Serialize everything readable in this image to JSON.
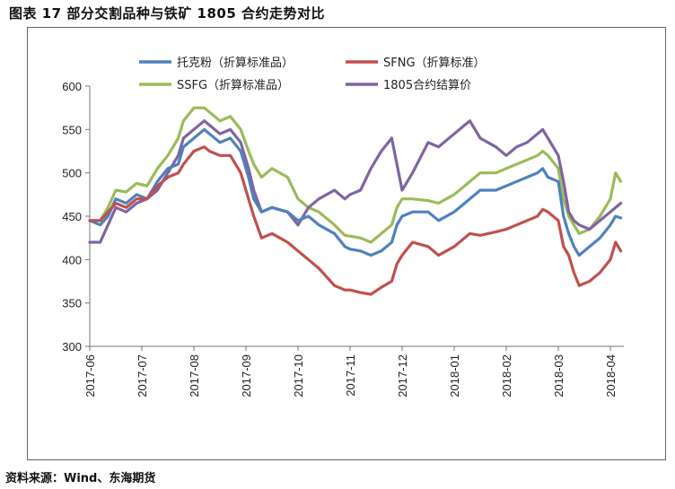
{
  "page": {
    "title": "图表 17 部分交割品种与铁矿 1805 合约走势对比",
    "source": "资料来源：Wind、东海期货"
  },
  "chart_data": {
    "type": "line",
    "title": "图表 17 部分交割品种与铁矿 1805 合约走势对比",
    "xlabel": "",
    "ylabel": "",
    "ylim": [
      300,
      600
    ],
    "yticks": [
      300,
      350,
      400,
      450,
      500,
      550,
      600
    ],
    "xlim": [
      0,
      10.2
    ],
    "x_categories": [
      "2017-06",
      "2017-07",
      "2017-08",
      "2017-09",
      "2017-10",
      "2017-11",
      "2017-12",
      "2018-01",
      "2018-02",
      "2018-03",
      "2018-04"
    ],
    "legend_position": "top",
    "series": [
      {
        "name": "托克粉（折算标准品）",
        "color": "#4f81bd",
        "points": [
          [
            0,
            445
          ],
          [
            0.2,
            440
          ],
          [
            0.35,
            450
          ],
          [
            0.5,
            470
          ],
          [
            0.7,
            465
          ],
          [
            0.9,
            475
          ],
          [
            1.1,
            470
          ],
          [
            1.3,
            490
          ],
          [
            1.5,
            505
          ],
          [
            1.7,
            510
          ],
          [
            1.8,
            530
          ],
          [
            2.0,
            540
          ],
          [
            2.2,
            550
          ],
          [
            2.3,
            545
          ],
          [
            2.5,
            535
          ],
          [
            2.7,
            540
          ],
          [
            2.9,
            525
          ],
          [
            3.05,
            495
          ],
          [
            3.15,
            470
          ],
          [
            3.3,
            455
          ],
          [
            3.5,
            460
          ],
          [
            3.8,
            455
          ],
          [
            4.0,
            445
          ],
          [
            4.2,
            450
          ],
          [
            4.4,
            440
          ],
          [
            4.7,
            430
          ],
          [
            4.9,
            415
          ],
          [
            5.0,
            412
          ],
          [
            5.2,
            410
          ],
          [
            5.4,
            405
          ],
          [
            5.6,
            410
          ],
          [
            5.8,
            420
          ],
          [
            5.9,
            440
          ],
          [
            6.0,
            450
          ],
          [
            6.2,
            455
          ],
          [
            6.5,
            455
          ],
          [
            6.7,
            445
          ],
          [
            7.0,
            455
          ],
          [
            7.2,
            465
          ],
          [
            7.3,
            470
          ],
          [
            7.5,
            480
          ],
          [
            7.8,
            480
          ],
          [
            8.0,
            485
          ],
          [
            8.2,
            490
          ],
          [
            8.4,
            495
          ],
          [
            8.6,
            500
          ],
          [
            8.7,
            505
          ],
          [
            8.8,
            495
          ],
          [
            9.0,
            490
          ],
          [
            9.1,
            450
          ],
          [
            9.2,
            430
          ],
          [
            9.3,
            415
          ],
          [
            9.4,
            405
          ],
          [
            9.6,
            415
          ],
          [
            9.8,
            425
          ],
          [
            10.0,
            440
          ],
          [
            10.1,
            450
          ],
          [
            10.2,
            448
          ]
        ]
      },
      {
        "name": "SFNG（折算标准）",
        "color": "#c0504d",
        "points": [
          [
            0,
            445
          ],
          [
            0.2,
            445
          ],
          [
            0.35,
            455
          ],
          [
            0.5,
            465
          ],
          [
            0.7,
            460
          ],
          [
            0.9,
            470
          ],
          [
            1.1,
            470
          ],
          [
            1.3,
            485
          ],
          [
            1.5,
            495
          ],
          [
            1.7,
            500
          ],
          [
            1.8,
            510
          ],
          [
            2.0,
            525
          ],
          [
            2.2,
            530
          ],
          [
            2.3,
            525
          ],
          [
            2.5,
            520
          ],
          [
            2.7,
            520
          ],
          [
            2.9,
            500
          ],
          [
            3.05,
            470
          ],
          [
            3.15,
            450
          ],
          [
            3.3,
            425
          ],
          [
            3.5,
            430
          ],
          [
            3.8,
            420
          ],
          [
            4.0,
            410
          ],
          [
            4.2,
            400
          ],
          [
            4.4,
            390
          ],
          [
            4.7,
            370
          ],
          [
            4.9,
            365
          ],
          [
            5.0,
            365
          ],
          [
            5.2,
            362
          ],
          [
            5.4,
            360
          ],
          [
            5.6,
            368
          ],
          [
            5.8,
            375
          ],
          [
            5.9,
            395
          ],
          [
            6.0,
            405
          ],
          [
            6.2,
            420
          ],
          [
            6.5,
            415
          ],
          [
            6.7,
            405
          ],
          [
            7.0,
            415
          ],
          [
            7.2,
            425
          ],
          [
            7.3,
            430
          ],
          [
            7.5,
            428
          ],
          [
            7.8,
            432
          ],
          [
            8.0,
            435
          ],
          [
            8.2,
            440
          ],
          [
            8.4,
            445
          ],
          [
            8.6,
            450
          ],
          [
            8.7,
            458
          ],
          [
            8.8,
            455
          ],
          [
            9.0,
            445
          ],
          [
            9.1,
            415
          ],
          [
            9.2,
            405
          ],
          [
            9.3,
            385
          ],
          [
            9.4,
            370
          ],
          [
            9.6,
            375
          ],
          [
            9.8,
            385
          ],
          [
            10.0,
            400
          ],
          [
            10.1,
            420
          ],
          [
            10.2,
            410
          ]
        ]
      },
      {
        "name": "SSFG（折算标准品）",
        "color": "#9bbb59",
        "points": [
          [
            0,
            445
          ],
          [
            0.2,
            445
          ],
          [
            0.35,
            460
          ],
          [
            0.5,
            480
          ],
          [
            0.7,
            478
          ],
          [
            0.9,
            488
          ],
          [
            1.1,
            485
          ],
          [
            1.3,
            505
          ],
          [
            1.5,
            520
          ],
          [
            1.7,
            540
          ],
          [
            1.8,
            560
          ],
          [
            2.0,
            575
          ],
          [
            2.2,
            575
          ],
          [
            2.3,
            570
          ],
          [
            2.5,
            560
          ],
          [
            2.7,
            565
          ],
          [
            2.9,
            550
          ],
          [
            3.05,
            525
          ],
          [
            3.15,
            510
          ],
          [
            3.3,
            495
          ],
          [
            3.5,
            505
          ],
          [
            3.8,
            495
          ],
          [
            4.0,
            470
          ],
          [
            4.2,
            460
          ],
          [
            4.4,
            455
          ],
          [
            4.7,
            440
          ],
          [
            4.9,
            428
          ],
          [
            5.0,
            427
          ],
          [
            5.2,
            425
          ],
          [
            5.4,
            420
          ],
          [
            5.6,
            430
          ],
          [
            5.8,
            440
          ],
          [
            5.9,
            460
          ],
          [
            6.0,
            470
          ],
          [
            6.2,
            470
          ],
          [
            6.5,
            468
          ],
          [
            6.7,
            465
          ],
          [
            7.0,
            475
          ],
          [
            7.2,
            485
          ],
          [
            7.3,
            490
          ],
          [
            7.5,
            500
          ],
          [
            7.8,
            500
          ],
          [
            8.0,
            505
          ],
          [
            8.2,
            510
          ],
          [
            8.4,
            515
          ],
          [
            8.6,
            520
          ],
          [
            8.7,
            525
          ],
          [
            8.8,
            520
          ],
          [
            9.0,
            505
          ],
          [
            9.1,
            470
          ],
          [
            9.2,
            450
          ],
          [
            9.3,
            440
          ],
          [
            9.4,
            430
          ],
          [
            9.6,
            435
          ],
          [
            9.8,
            450
          ],
          [
            10.0,
            470
          ],
          [
            10.1,
            500
          ],
          [
            10.2,
            490
          ]
        ]
      },
      {
        "name": "1805合约结算价",
        "color": "#8064a2",
        "points": [
          [
            0,
            420
          ],
          [
            0.2,
            420
          ],
          [
            0.35,
            440
          ],
          [
            0.5,
            460
          ],
          [
            0.7,
            455
          ],
          [
            0.9,
            465
          ],
          [
            1.1,
            470
          ],
          [
            1.3,
            480
          ],
          [
            1.5,
            500
          ],
          [
            1.7,
            520
          ],
          [
            1.8,
            540
          ],
          [
            2.0,
            550
          ],
          [
            2.2,
            560
          ],
          [
            2.3,
            555
          ],
          [
            2.5,
            545
          ],
          [
            2.7,
            550
          ],
          [
            2.9,
            535
          ],
          [
            3.05,
            505
          ],
          [
            3.15,
            480
          ],
          [
            3.3,
            455
          ],
          [
            3.5,
            460
          ],
          [
            3.8,
            455
          ],
          [
            4.0,
            440
          ],
          [
            4.2,
            460
          ],
          [
            4.4,
            470
          ],
          [
            4.7,
            480
          ],
          [
            4.9,
            470
          ],
          [
            5.0,
            475
          ],
          [
            5.2,
            480
          ],
          [
            5.4,
            505
          ],
          [
            5.6,
            525
          ],
          [
            5.8,
            540
          ],
          [
            5.9,
            510
          ],
          [
            6.0,
            480
          ],
          [
            6.2,
            500
          ],
          [
            6.5,
            535
          ],
          [
            6.7,
            530
          ],
          [
            7.0,
            545
          ],
          [
            7.2,
            555
          ],
          [
            7.3,
            560
          ],
          [
            7.5,
            540
          ],
          [
            7.8,
            530
          ],
          [
            8.0,
            520
          ],
          [
            8.2,
            530
          ],
          [
            8.4,
            535
          ],
          [
            8.6,
            545
          ],
          [
            8.7,
            550
          ],
          [
            8.8,
            540
          ],
          [
            9.0,
            520
          ],
          [
            9.1,
            490
          ],
          [
            9.2,
            455
          ],
          [
            9.3,
            445
          ],
          [
            9.4,
            440
          ],
          [
            9.6,
            435
          ],
          [
            9.8,
            445
          ],
          [
            10.0,
            455
          ],
          [
            10.1,
            460
          ],
          [
            10.2,
            465
          ]
        ]
      }
    ]
  }
}
